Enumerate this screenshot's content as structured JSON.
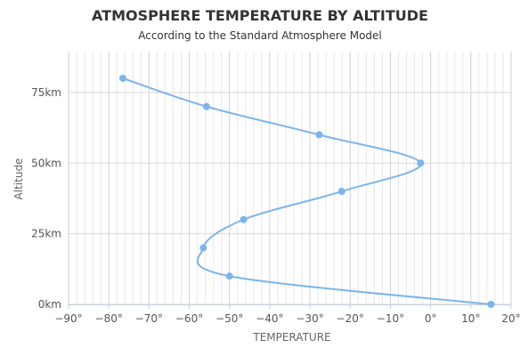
{
  "chart_data": {
    "type": "line",
    "title": "ATMOSPHERE TEMPERATURE BY ALTITUDE",
    "subtitle": "According to the Standard Atmosphere Model",
    "xlabel": "TEMPERATURE",
    "ylabel": "Altitude",
    "xlim": [
      -90,
      20
    ],
    "ylim": [
      0,
      80
    ],
    "x_ticks": [
      -90,
      -80,
      -70,
      -60,
      -50,
      -40,
      -30,
      -20,
      -10,
      0,
      10,
      20
    ],
    "x_tick_labels": [
      "−90°",
      "−80°",
      "−70°",
      "−60°",
      "−50°",
      "−40°",
      "−30°",
      "−20°",
      "−10°",
      "0°",
      "10°",
      "20°"
    ],
    "y_ticks": [
      0,
      25,
      50,
      75
    ],
    "y_tick_labels": [
      "0km",
      "25km",
      "50km",
      "75km"
    ],
    "grid": true,
    "color": "#7cb5ec",
    "series": [
      {
        "points": [
          {
            "x": 15,
            "y": 0
          },
          {
            "x": -50,
            "y": 10
          },
          {
            "x": -56.5,
            "y": 20
          },
          {
            "x": -46.5,
            "y": 30
          },
          {
            "x": -22.1,
            "y": 40
          },
          {
            "x": -2.5,
            "y": 50
          },
          {
            "x": -27.7,
            "y": 60
          },
          {
            "x": -55.7,
            "y": 70
          },
          {
            "x": -76.5,
            "y": 80
          }
        ]
      }
    ]
  }
}
